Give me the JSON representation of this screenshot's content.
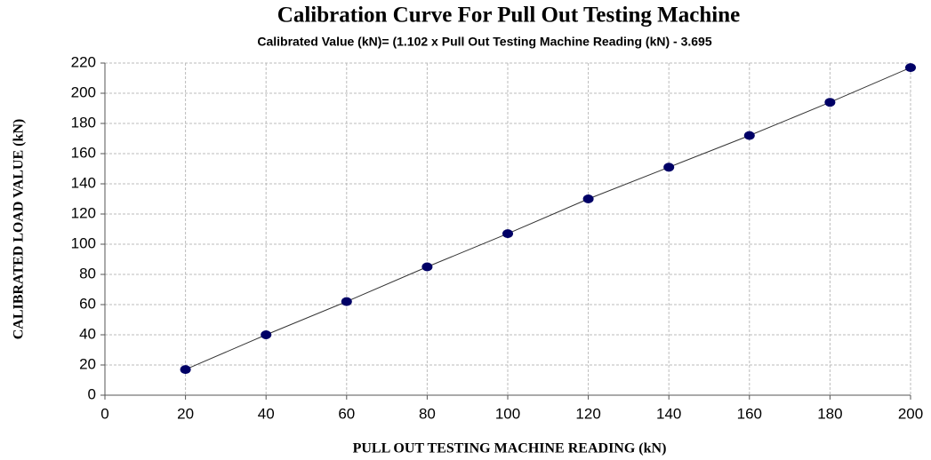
{
  "chart_data": {
    "type": "scatter",
    "title": "Calibration Curve For Pull Out Testing Machine",
    "subtitle": "Calibrated Value (kN)= (1.102 x Pull Out Testing Machine Reading (kN)  - 3.695",
    "x_label": "PULL OUT TESTING MACHINE READING (kN)",
    "y_label": "CALIBRATED LOAD VALUE  (kN)",
    "x": [
      20,
      40,
      60,
      80,
      100,
      120,
      140,
      160,
      180,
      200
    ],
    "series": [
      {
        "color": "#000066",
        "line_color": "#333333",
        "values": [
          17,
          40,
          62,
          85,
          107,
          130,
          151,
          172,
          194,
          217
        ]
      }
    ],
    "xlim": [
      0,
      200
    ],
    "xticks": [
      0,
      20,
      40,
      60,
      80,
      100,
      120,
      140,
      160,
      180,
      200
    ],
    "ylim": [
      0,
      220
    ],
    "yticks": [
      0,
      20,
      40,
      60,
      80,
      100,
      120,
      140,
      160,
      180,
      200,
      220
    ],
    "grid": true
  }
}
